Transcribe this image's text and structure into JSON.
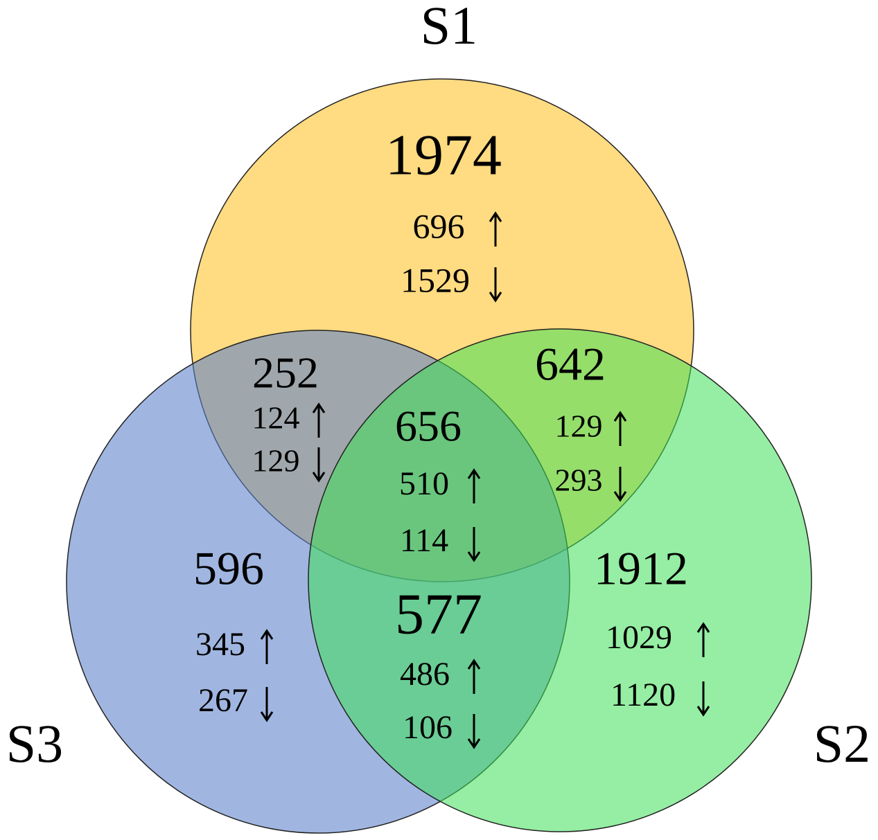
{
  "sets": [
    {
      "label": "S1"
    },
    {
      "label": "S2"
    },
    {
      "label": "S3"
    }
  ],
  "regions": [
    {
      "total": 1974,
      "up": 696,
      "down": 1529
    },
    {
      "total": 252,
      "up": 124,
      "down": 129
    },
    {
      "total": 642,
      "up": 129,
      "down": 293
    },
    {
      "total": 656,
      "up": 510,
      "down": 114
    },
    {
      "total": 596,
      "up": 345,
      "down": 267
    },
    {
      "total": 577,
      "up": 486,
      "down": 106
    },
    {
      "total": 1912,
      "up": 1029,
      "down": 1120
    }
  ]
}
